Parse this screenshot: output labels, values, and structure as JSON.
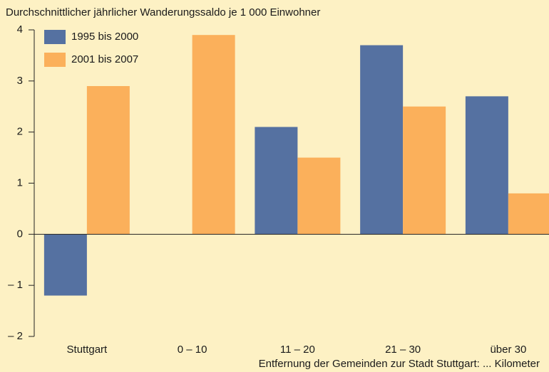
{
  "chart_data": {
    "type": "bar",
    "title": "Durchschnittlicher jährlicher Wanderungssaldo je 1 000 Einwohner",
    "x_label": "Entfernung der Gemeinden zur Stadt Stuttgart: ... Kilometer",
    "categories": [
      "Stuttgart",
      "0 – 10",
      "11 – 20",
      "21 – 30",
      "über 30"
    ],
    "series": [
      {
        "name": "1995 bis 2000",
        "color": "#5571a1",
        "values": [
          -1.2,
          0,
          2.1,
          3.7,
          2.7
        ]
      },
      {
        "name": "2001 bis 2007",
        "color": "#fbb05b",
        "values": [
          2.9,
          3.9,
          1.5,
          2.5,
          0.8
        ]
      }
    ],
    "ylim": [
      -2,
      4
    ],
    "yticks": [
      {
        "value": -2,
        "label": "– 2"
      },
      {
        "value": -1,
        "label": "– 1"
      },
      0,
      1,
      2,
      3,
      4
    ],
    "legend": "top-left"
  }
}
